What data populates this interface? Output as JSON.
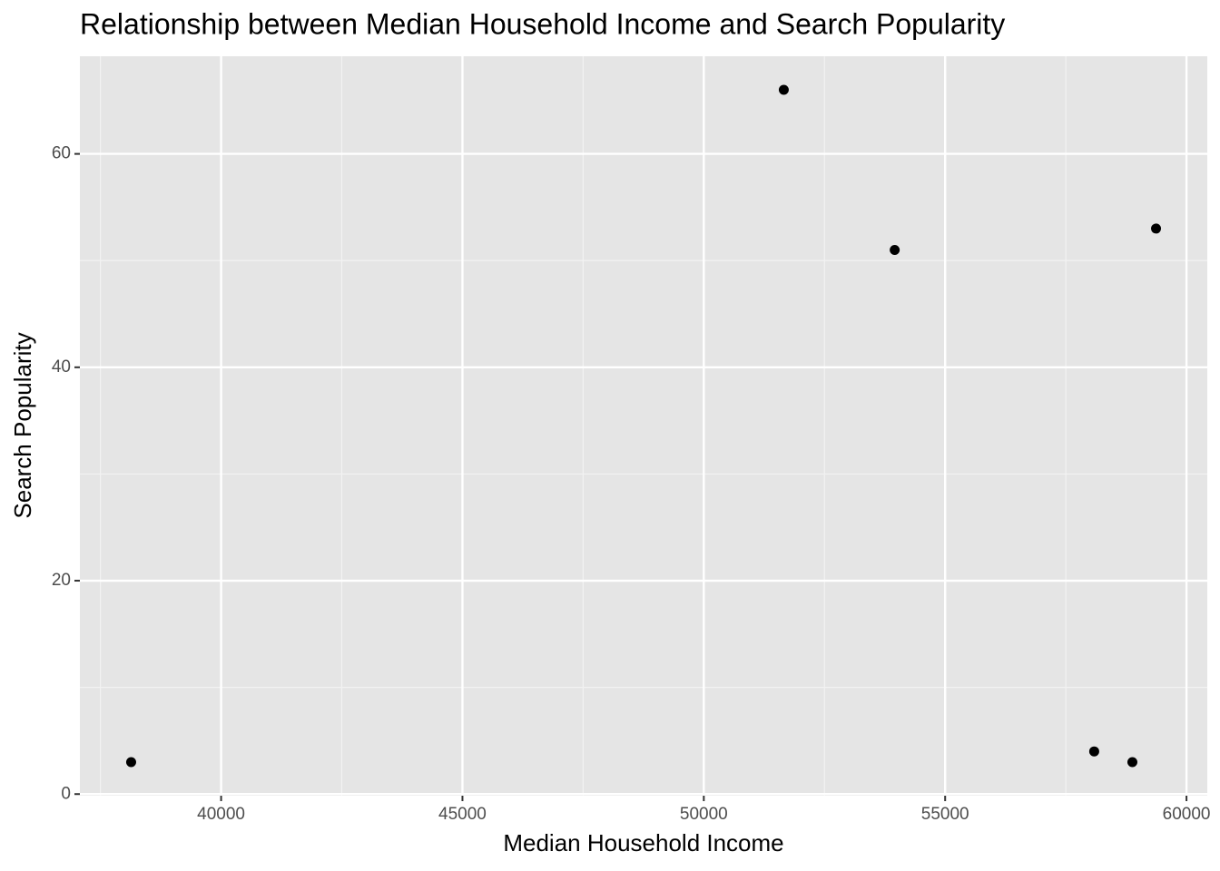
{
  "chart_data": {
    "type": "scatter",
    "title": "Relationship between Median Household Income and Search Popularity",
    "x_label": "Median Household Income",
    "y_label": "Search Popularity",
    "x": [
      38136,
      51657,
      53955,
      58088,
      58879,
      59369
    ],
    "values": [
      3,
      66,
      51,
      4,
      3,
      53
    ],
    "color": "#000000",
    "xlim": [
      37074,
      60431
    ],
    "ylim": [
      -0.15,
      69.15
    ],
    "xticks": [
      40000,
      45000,
      50000,
      55000,
      60000
    ],
    "yticks": [
      0,
      20,
      40,
      60
    ],
    "x_minor_ticks": [
      37500,
      42500,
      47500,
      52500,
      57500
    ],
    "y_minor_ticks": [
      10,
      30,
      50
    ],
    "grid": true
  }
}
